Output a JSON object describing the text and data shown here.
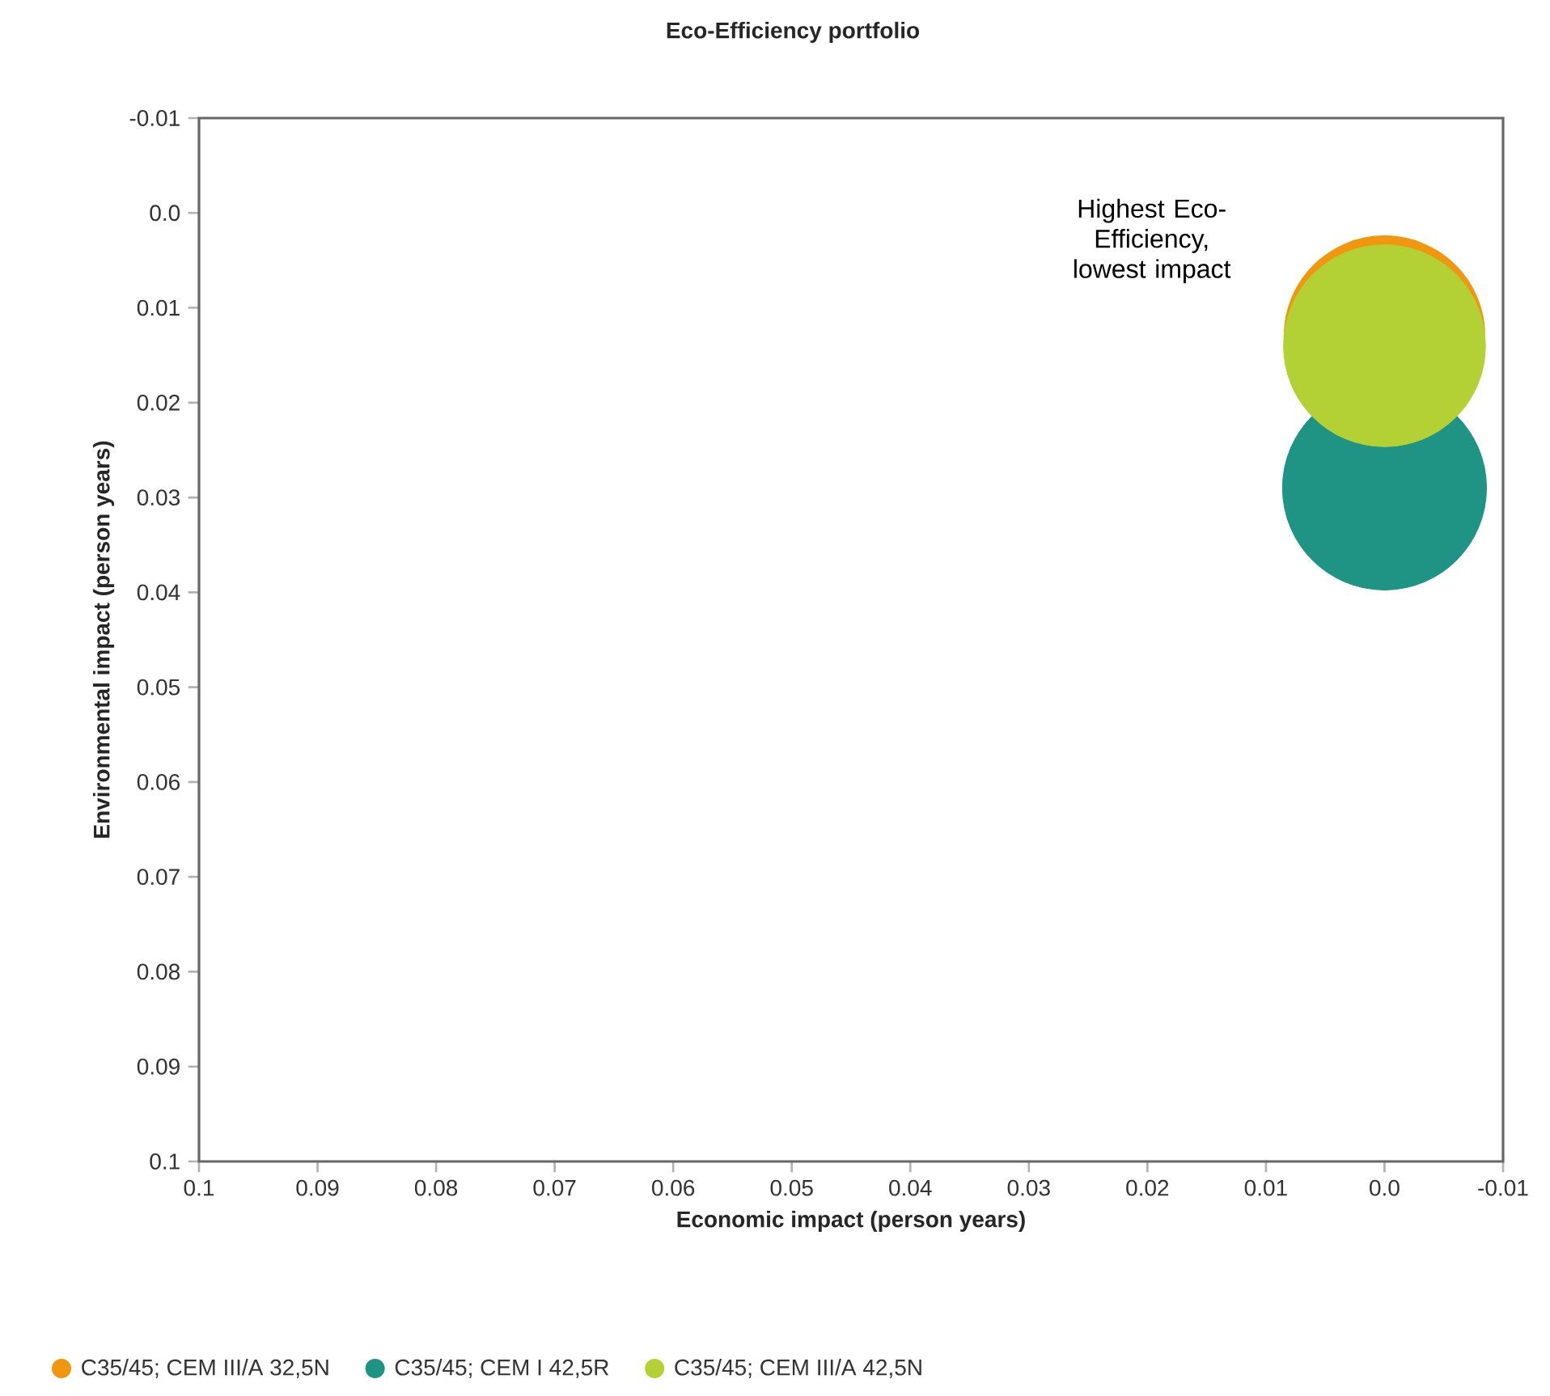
{
  "chart_data": {
    "type": "bubble",
    "title": "Eco-Efficiency portfolio",
    "xlabel": "Economic impact (person years)",
    "ylabel": "Environmental impact (person years)",
    "annotations": [
      "Highest Eco-Efficiency, lowest impact"
    ],
    "xlim": [
      0.1,
      -0.01
    ],
    "ylim": [
      0.1,
      -0.01
    ],
    "xticks": [
      0.1,
      0.09,
      0.08,
      0.07,
      0.06,
      0.05,
      0.04,
      0.03,
      0.02,
      0.01,
      {
        "value": 0,
        "label": "0.0"
      },
      -0.01
    ],
    "yticks": [
      0.1,
      0.09,
      0.08,
      0.07,
      0.06,
      0.05,
      0.04,
      0.03,
      0.02,
      0.01,
      {
        "value": 0,
        "label": "0.0"
      },
      -0.01
    ],
    "grid": false,
    "legend": "bottom",
    "x": [
      0
    ],
    "series": [
      {
        "name": "C35/45; CEM III/A 32,5N",
        "color": "#f0960f",
        "values": [
          0.013
        ],
        "sizes": [
          0.97
        ]
      },
      {
        "name": "C35/45; CEM I 42,5R",
        "color": "#1f9384",
        "values": [
          0.029
        ],
        "sizes": [
          1
        ]
      },
      {
        "name": "C35/45; CEM III/A 42,5N",
        "color": "#b3d135",
        "values": [
          0.014
        ],
        "sizes": [
          0.98
        ]
      }
    ]
  }
}
